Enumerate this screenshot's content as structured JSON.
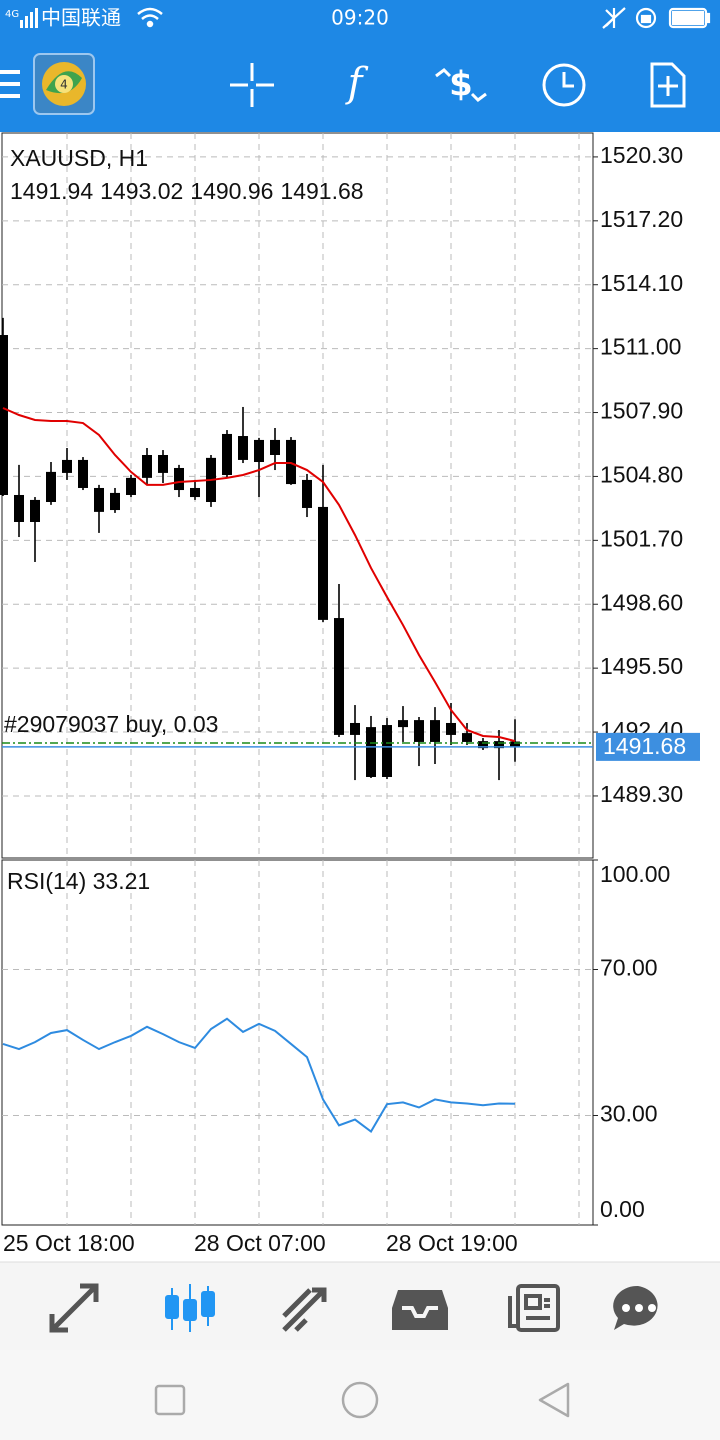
{
  "status_bar": {
    "network": "4G",
    "carrier": "中国联通",
    "time": "09:20"
  },
  "chart_data": [
    {
      "type": "candlestick",
      "title": "XAUUSD, H1",
      "color": "#000000",
      "categories": [
        "25 Oct 18:00",
        null,
        null,
        null,
        null,
        null,
        null,
        null,
        null,
        null,
        null,
        null,
        "28 Oct 07:00",
        null,
        null,
        null,
        null,
        null,
        null,
        null,
        null,
        null,
        null,
        null,
        "28 Oct 19:00",
        null,
        null,
        null,
        null,
        null,
        null,
        null,
        null
      ],
      "open": [
        1511.66,
        1503.9,
        1502.59,
        1503.56,
        1504.97,
        1505.6,
        1504.24,
        1503.17,
        1503.9,
        1504.73,
        1505.84,
        1505.21,
        1504.24,
        1503.56,
        1504.87,
        1506.76,
        1505.5,
        1506.57,
        1506.57,
        1504.63,
        1503.32,
        1497.93,
        1492.26,
        1492.64,
        1490.22,
        1492.64,
        1492.98,
        1491.92,
        1492.84,
        1492.35,
        1491.96,
        1491.62,
        1491.94
      ],
      "high": [
        1512.49,
        1505.36,
        1503.8,
        1505.5,
        1506.18,
        1505.74,
        1504.39,
        1504.24,
        1504.87,
        1506.18,
        1506.08,
        1505.36,
        1504.63,
        1505.84,
        1507.05,
        1508.17,
        1506.67,
        1507.15,
        1506.71,
        1504.92,
        1505.36,
        1499.58,
        1493.71,
        1493.18,
        1493.08,
        1493.66,
        1493.13,
        1493.61,
        1493.81,
        1492.84,
        1492.11,
        1492.5,
        1493.02
      ],
      "low": [
        1503.85,
        1501.86,
        1500.65,
        1503.42,
        1504.63,
        1504.14,
        1502.06,
        1503.03,
        1503.8,
        1504.39,
        1504.48,
        1503.8,
        1503.66,
        1503.32,
        1504.77,
        1505.45,
        1503.8,
        1505.11,
        1504.39,
        1502.83,
        1497.74,
        1492.16,
        1490.07,
        1490.17,
        1490.12,
        1491.92,
        1490.75,
        1490.85,
        1491.77,
        1491.77,
        1491.53,
        1490.07,
        1490.96
      ],
      "close": [
        1503.9,
        1502.59,
        1503.66,
        1505.02,
        1505.6,
        1504.24,
        1503.08,
        1504.0,
        1504.73,
        1505.84,
        1504.97,
        1504.14,
        1503.8,
        1505.7,
        1506.86,
        1505.6,
        1506.57,
        1505.84,
        1504.43,
        1503.27,
        1497.84,
        1492.26,
        1492.84,
        1490.22,
        1492.74,
        1492.98,
        1491.92,
        1492.98,
        1492.26,
        1491.92,
        1491.62,
        1491.96,
        1491.68
      ],
      "moving_average": {
        "color": "#e00000",
        "values": [
          1508.12,
          1507.78,
          1507.54,
          1507.49,
          1507.49,
          1507.39,
          1506.81,
          1505.84,
          1505.02,
          1504.39,
          1504.39,
          1504.53,
          1504.58,
          1504.63,
          1504.73,
          1504.87,
          1505.11,
          1505.45,
          1505.45,
          1505.11,
          1504.53,
          1503.42,
          1501.96,
          1500.36,
          1498.95,
          1497.59,
          1496.14,
          1494.83,
          1493.47,
          1492.5,
          1492.21,
          1492.16,
          1491.96
        ]
      },
      "order": {
        "label": "#29079037 buy, 0.03",
        "value": 1491.87,
        "color": "#1a8a1a"
      },
      "bid": {
        "value": 1491.68,
        "color": "#3d8fe0"
      },
      "ylim": [
        1486.29,
        1521.46
      ],
      "yticks": [
        {
          "value": 1520.3,
          "label": "1520.30"
        },
        {
          "value": 1517.2,
          "label": "1517.20"
        },
        {
          "value": 1514.1,
          "label": "1514.10"
        },
        {
          "value": 1511,
          "label": "1511.00"
        },
        {
          "value": 1507.9,
          "label": "1507.90"
        },
        {
          "value": 1504.8,
          "label": "1504.80"
        },
        {
          "value": 1501.7,
          "label": "1501.70"
        },
        {
          "value": 1498.6,
          "label": "1498.60"
        },
        {
          "value": 1495.5,
          "label": "1495.50"
        },
        {
          "value": 1492.4,
          "label": "1492.40"
        },
        {
          "value": 1489.3,
          "label": "1489.30"
        }
      ],
      "grid": true
    },
    {
      "type": "line",
      "title": "RSI(14) 33.21",
      "series": [
        {
          "color": "#2e8be0",
          "values": [
            49.6,
            48.2,
            50.1,
            52.6,
            53.4,
            50.7,
            48.2,
            50.1,
            51.8,
            54.3,
            52.3,
            50.1,
            48.5,
            53.7,
            56.5,
            52.9,
            55.1,
            53.2,
            49.6,
            46.0,
            34.4,
            27.3,
            28.9,
            25.6,
            33.1,
            33.6,
            32.2,
            34.4,
            33.6,
            33.3,
            32.8,
            33.3,
            33.21
          ]
        }
      ],
      "ylim": [
        0,
        100
      ],
      "yticks": [
        {
          "value": 100,
          "label": "100.00"
        },
        {
          "value": 70,
          "label": "70.00"
        },
        {
          "value": 30,
          "label": "30.00"
        },
        {
          "value": 0,
          "label": "0.00"
        }
      ],
      "grid": true
    }
  ]
}
